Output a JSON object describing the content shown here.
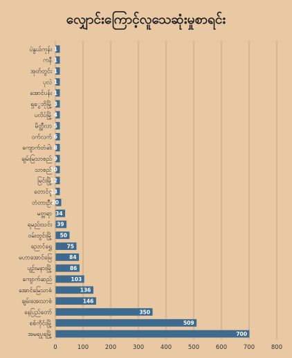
{
  "chart_data": {
    "type": "bar",
    "orientation": "horizontal",
    "title": "လျှောင်းကြောင့်လူသေဆုံးမှုစာရင်း",
    "xlim": [
      0,
      800
    ],
    "x_ticks": [
      "0",
      "100",
      "200",
      "300",
      "400",
      "500",
      "600",
      "700",
      "800"
    ],
    "grid": true,
    "colors": {
      "bar": "#3d6b8f",
      "background": "#e8c9a4",
      "gridline": "#a88b6a"
    },
    "categories": [
      "ပဲနွယ်ကုန်း",
      "ကနီ",
      "အုတ်တွင်း",
      "ပုလဲ",
      "အောင်ပန်း",
      "ရှွေဘိုမြို့",
      "ပလိပ်မြို့",
      "မိတ္ထီလာ",
      "ဝက်လက်",
      "ကျောက်တံခါး",
      "ချမ်းမြသာစည်",
      "သာစည်",
      "မြင်းမြို့",
      "တောင်ငူ",
      "တံတားဦး",
      "မတ္တရာ",
      "ရမည်းသင်း",
      "ဝမ်းတွင်းမြို့",
      "ညောင်ရွှေ",
      "မဟာအောင်မြေ",
      "ပျဉ်းမနားမြို့",
      "ကျောက်ဆည်",
      "အောင်မြေသာစံ",
      "ချမ်းအေးသာစံ",
      "နေပြည်တော်",
      "စစ်ကိုင်းမြို့",
      "အမရပူရမြို့"
    ],
    "values": [
      1,
      1,
      1,
      1,
      1,
      3,
      4,
      5,
      6,
      8,
      9,
      10,
      12,
      13,
      20,
      34,
      39,
      50,
      75,
      84,
      86,
      103,
      136,
      146,
      350,
      509,
      700
    ],
    "data_labels": [
      "1",
      "1",
      "1",
      "1",
      "1",
      "3",
      "4",
      "5",
      "6",
      "8",
      "9",
      "10",
      "12",
      "13",
      "20",
      "34",
      "39",
      "50",
      "75",
      "84",
      "86",
      "103",
      "136",
      "146",
      "350",
      "509",
      "700"
    ]
  }
}
